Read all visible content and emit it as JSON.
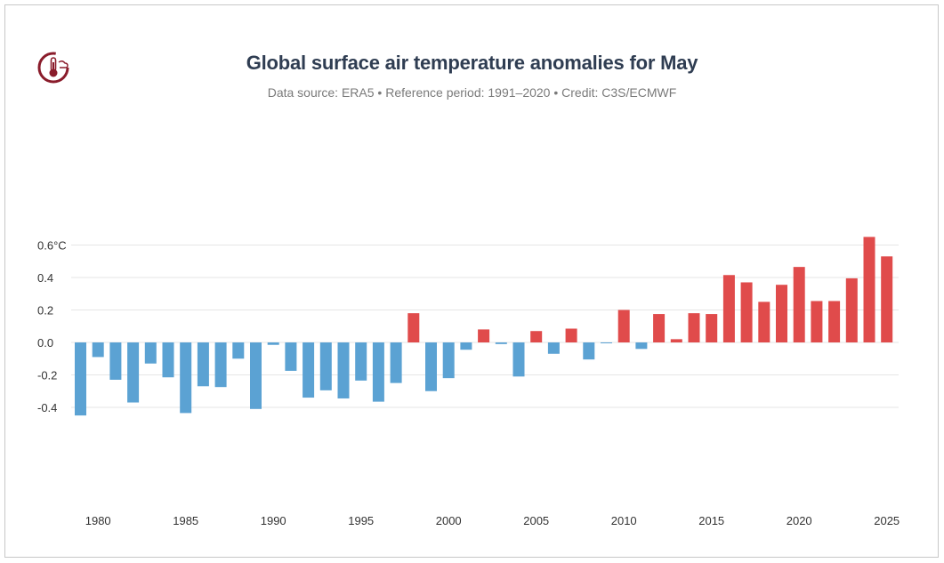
{
  "chart_data": {
    "type": "bar",
    "title": "Global surface air temperature anomalies for May",
    "subtitle": "Data source: ERA5 • Reference period: 1991–2020 • Credit: C3S/ECMWF",
    "xlabel": "",
    "ylabel": "",
    "ylim": [
      -0.5,
      0.7
    ],
    "yticks": [
      {
        "value": 0.6,
        "label": "0.6°C"
      },
      {
        "value": 0.4,
        "label": "0.4"
      },
      {
        "value": 0.2,
        "label": "0.2"
      },
      {
        "value": 0.0,
        "label": "0.0"
      },
      {
        "value": -0.2,
        "label": "-0.2"
      },
      {
        "value": -0.4,
        "label": "-0.4"
      }
    ],
    "xticks": [
      1980,
      1985,
      1990,
      1995,
      2000,
      2005,
      2010,
      2015,
      2020,
      2025
    ],
    "grid": true,
    "positive_color": "#e04b4b",
    "negative_color": "#5ba2d3",
    "years": [
      1979,
      1980,
      1981,
      1982,
      1983,
      1984,
      1985,
      1986,
      1987,
      1988,
      1989,
      1990,
      1991,
      1992,
      1993,
      1994,
      1995,
      1996,
      1997,
      1998,
      1999,
      2000,
      2001,
      2002,
      2003,
      2004,
      2005,
      2006,
      2007,
      2008,
      2009,
      2010,
      2011,
      2012,
      2013,
      2014,
      2015,
      2016,
      2017,
      2018,
      2019,
      2020,
      2021,
      2022,
      2023,
      2024,
      2025
    ],
    "values": [
      -0.45,
      -0.09,
      -0.23,
      -0.37,
      -0.13,
      -0.215,
      -0.435,
      -0.27,
      -0.275,
      -0.1,
      -0.41,
      -0.015,
      -0.175,
      -0.34,
      -0.295,
      -0.345,
      -0.235,
      -0.365,
      -0.25,
      0.18,
      -0.3,
      -0.22,
      -0.045,
      0.08,
      -0.01,
      -0.21,
      0.07,
      -0.07,
      0.085,
      -0.105,
      -0.005,
      0.2,
      -0.04,
      0.175,
      0.02,
      0.18,
      0.175,
      0.415,
      0.37,
      0.25,
      0.355,
      0.465,
      0.255,
      0.255,
      0.395,
      0.65,
      0.53
    ]
  }
}
